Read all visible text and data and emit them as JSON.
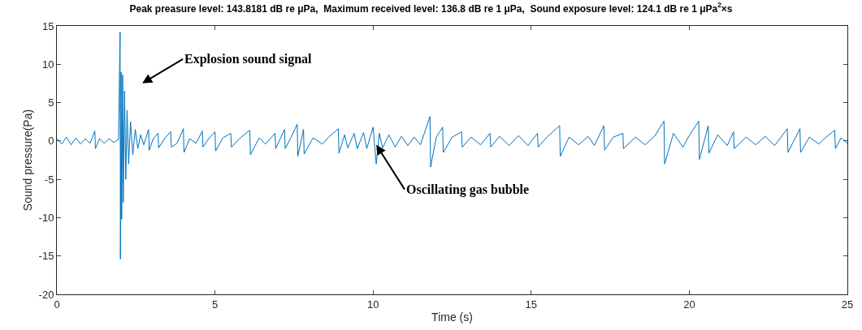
{
  "chart_data": {
    "type": "line",
    "title": "Peak preasure level: 143.8181 dB re μPa,  Maximum received level: 136.8 dB re 1 μPa,  Sound exposure level: 124.1 dB re 1 μPa$^{2}$×s",
    "xlabel": "Time (s)",
    "ylabel": "Sound pressure(Pa)",
    "xlim": [
      0,
      25
    ],
    "xticks": [
      0,
      5,
      10,
      15,
      20,
      25
    ],
    "ylim": [
      -20,
      15
    ],
    "yticks": [
      -20,
      -15,
      -10,
      -5,
      0,
      5,
      10,
      15
    ],
    "legend": false,
    "marker": "none",
    "line_style": "solid",
    "annotations": [
      "Explosion sound signal",
      {
        "text": "Oscillating gas bubble",
        "x": 10.1,
        "y": -0.5
      }
    ],
    "series": [
      {
        "color": "#0072bd",
        "x": [
          0,
          0.15,
          0.3,
          0.45,
          0.6,
          0.75,
          0.9,
          1.05,
          1.2,
          1.22,
          1.35,
          1.5,
          1.65,
          1.8,
          1.95,
          2.0,
          2.01,
          2.03,
          2.05,
          2.08,
          2.1,
          2.14,
          2.18,
          2.22,
          2.27,
          2.33,
          2.4,
          2.48,
          2.56,
          2.65,
          2.75,
          2.9,
          2.92,
          3.05,
          3.2,
          3.22,
          3.4,
          3.6,
          3.62,
          3.8,
          4.0,
          4.02,
          4.2,
          4.4,
          4.6,
          4.62,
          4.8,
          5.0,
          5.02,
          5.25,
          5.5,
          5.52,
          5.8,
          6.1,
          6.12,
          6.4,
          6.6,
          6.9,
          6.92,
          7.2,
          7.22,
          7.4,
          7.6,
          7.62,
          7.8,
          7.82,
          8.1,
          8.4,
          8.6,
          8.9,
          8.92,
          9.1,
          9.2,
          9.4,
          9.5,
          9.7,
          9.8,
          10.0,
          10.1,
          10.2,
          10.3,
          10.5,
          10.7,
          10.9,
          11.1,
          11.3,
          11.5,
          11.8,
          11.82,
          12.0,
          12.2,
          12.22,
          12.5,
          12.8,
          12.82,
          13.1,
          13.4,
          13.7,
          13.72,
          14.0,
          14.3,
          14.6,
          14.9,
          15.2,
          15.22,
          15.5,
          15.9,
          15.92,
          16.2,
          16.5,
          16.8,
          17.0,
          17.3,
          17.32,
          17.6,
          17.9,
          17.92,
          18.3,
          18.6,
          18.9,
          19.2,
          19.22,
          19.5,
          19.8,
          20.0,
          20.3,
          20.32,
          20.6,
          20.62,
          20.9,
          21.2,
          21.4,
          21.42,
          21.8,
          22.1,
          22.4,
          22.7,
          23.1,
          23.12,
          23.5,
          23.52,
          23.8,
          24.1,
          24.3,
          24.6,
          24.62,
          24.8,
          25.0
        ],
        "values": [
          0.3,
          -0.4,
          0.5,
          -0.5,
          0.4,
          -0.4,
          0.3,
          -0.3,
          1.3,
          -1.0,
          0.3,
          -0.3,
          0.3,
          -0.2,
          0.2,
          14.2,
          -15.4,
          9.0,
          -10.2,
          8.6,
          -8.0,
          6.5,
          -5.0,
          4.0,
          -3.0,
          2.5,
          -1.8,
          1.5,
          -1.0,
          0.8,
          -0.5,
          1.5,
          -1.2,
          0.3,
          1.0,
          -0.9,
          0.3,
          1.2,
          -0.8,
          -0.3,
          1.6,
          -1.5,
          0.3,
          -0.3,
          1.3,
          -0.8,
          0.3,
          1.2,
          -1.3,
          0.4,
          1.0,
          -0.8,
          0.4,
          1.4,
          -1.8,
          0.4,
          -0.4,
          1.0,
          -1.0,
          1.5,
          -1.0,
          0.4,
          2.2,
          -2.0,
          1.5,
          -1.7,
          0.4,
          -0.4,
          0.5,
          1.6,
          -1.6,
          0.8,
          -0.9,
          1.0,
          -1.0,
          1.1,
          -1.0,
          1.8,
          -3.0,
          1.0,
          -0.9,
          0.8,
          -0.8,
          0.6,
          -0.6,
          0.5,
          -0.5,
          3.2,
          -3.4,
          0.5,
          1.8,
          -1.5,
          0.5,
          1.2,
          -0.8,
          0.5,
          -0.5,
          1.0,
          -0.8,
          0.6,
          -0.6,
          0.7,
          -0.6,
          1.0,
          -0.8,
          0.5,
          2.0,
          -2.0,
          0.5,
          -0.5,
          0.6,
          -0.6,
          2.0,
          -1.2,
          0.5,
          1.0,
          -1.0,
          0.5,
          -0.5,
          0.6,
          2.6,
          -3.0,
          1.0,
          -0.8,
          0.7,
          2.6,
          -2.4,
          2.0,
          -1.6,
          0.8,
          -0.6,
          1.2,
          -1.0,
          0.5,
          -0.5,
          0.6,
          -0.6,
          1.6,
          -1.5,
          1.6,
          -1.5,
          0.5,
          -0.4,
          0.4,
          1.4,
          -1.0,
          0.4,
          -0.3
        ]
      }
    ]
  }
}
